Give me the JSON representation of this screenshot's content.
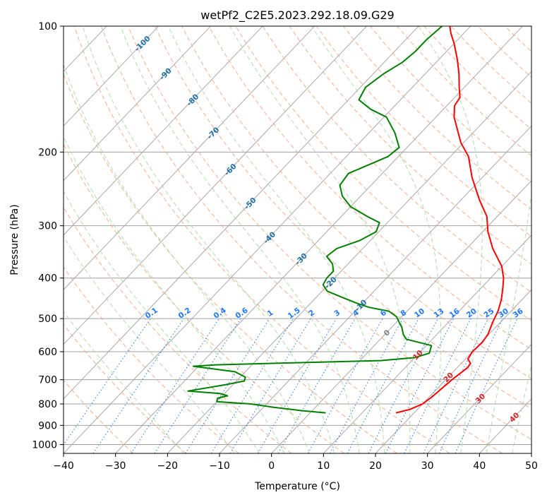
{
  "chart_data": {
    "type": "line",
    "title": "wetPf2_C2E5.2023.292.18.09.G29",
    "xlabel": "Temperature (°C)",
    "ylabel": "Pressure (hPa)",
    "xlim": [
      -40,
      50
    ],
    "ylim": [
      1050,
      100
    ],
    "y_scale": "log",
    "skew": true,
    "x_ticks": [
      -40,
      -30,
      -20,
      -10,
      0,
      10,
      20,
      30,
      40,
      50
    ],
    "y_ticks": [
      100,
      200,
      300,
      400,
      500,
      600,
      700,
      800,
      900,
      1000
    ],
    "grid": true,
    "colors": {
      "temperature": "#ff0000",
      "dewpoint": "#008000",
      "dry_adiabats": "#f4a582",
      "moist_adiabats": "#a6d9a0",
      "mixing_ratio": "#1f77ff",
      "isotherms": "#a0a0a0",
      "theta_labels": "#1f6fa8",
      "positive_iso_labels": "#d62728"
    },
    "series": [
      {
        "role": "temperature",
        "values": [
          {
            "x": 16.5,
            "y": 840
          },
          {
            "x": 18.5,
            "y": 825
          },
          {
            "x": 20.0,
            "y": 800
          },
          {
            "x": 20.5,
            "y": 770
          },
          {
            "x": 20.8,
            "y": 740
          },
          {
            "x": 21.2,
            "y": 700
          },
          {
            "x": 22.0,
            "y": 655
          },
          {
            "x": 21.8,
            "y": 640
          },
          {
            "x": 20.5,
            "y": 625
          },
          {
            "x": 20.0,
            "y": 600
          },
          {
            "x": 20.2,
            "y": 570
          },
          {
            "x": 19.8,
            "y": 545
          },
          {
            "x": 18.5,
            "y": 510
          },
          {
            "x": 17.5,
            "y": 480
          },
          {
            "x": 16.0,
            "y": 450
          },
          {
            "x": 14.0,
            "y": 420
          },
          {
            "x": 12.5,
            "y": 400
          },
          {
            "x": 10.0,
            "y": 375
          },
          {
            "x": 5.0,
            "y": 340
          },
          {
            "x": 1.0,
            "y": 310
          },
          {
            "x": -2.0,
            "y": 285
          },
          {
            "x": -6.5,
            "y": 260
          },
          {
            "x": -12.0,
            "y": 230
          },
          {
            "x": -16.5,
            "y": 205
          },
          {
            "x": -20.5,
            "y": 190
          },
          {
            "x": -24.0,
            "y": 175
          },
          {
            "x": -26.5,
            "y": 165
          },
          {
            "x": -28.5,
            "y": 155
          },
          {
            "x": -29.0,
            "y": 148
          },
          {
            "x": -31.0,
            "y": 140
          },
          {
            "x": -33.5,
            "y": 130
          },
          {
            "x": -36.5,
            "y": 120
          },
          {
            "x": -40.0,
            "y": 110
          },
          {
            "x": -42.5,
            "y": 104
          },
          {
            "x": -44.0,
            "y": 100
          }
        ]
      },
      {
        "role": "dewpoint",
        "values": [
          {
            "x": 3.0,
            "y": 840
          },
          {
            "x": -2.0,
            "y": 830
          },
          {
            "x": -8.0,
            "y": 815
          },
          {
            "x": -13.0,
            "y": 800
          },
          {
            "x": -20.0,
            "y": 790
          },
          {
            "x": -20.5,
            "y": 775
          },
          {
            "x": -19.0,
            "y": 765
          },
          {
            "x": -21.0,
            "y": 755
          },
          {
            "x": -27.5,
            "y": 745
          },
          {
            "x": -21.5,
            "y": 720
          },
          {
            "x": -18.5,
            "y": 705
          },
          {
            "x": -19.0,
            "y": 690
          },
          {
            "x": -22.0,
            "y": 670
          },
          {
            "x": -31.0,
            "y": 650
          },
          {
            "x": -27.0,
            "y": 645
          },
          {
            "x": 4.0,
            "y": 630
          },
          {
            "x": 10.0,
            "y": 620
          },
          {
            "x": 12.0,
            "y": 605
          },
          {
            "x": 11.0,
            "y": 580
          },
          {
            "x": 8.0,
            "y": 570
          },
          {
            "x": 5.0,
            "y": 560
          },
          {
            "x": 3.5,
            "y": 545
          },
          {
            "x": 2.0,
            "y": 525
          },
          {
            "x": 0.5,
            "y": 510
          },
          {
            "x": -1.0,
            "y": 495
          },
          {
            "x": -3.5,
            "y": 480
          },
          {
            "x": -8.0,
            "y": 470
          },
          {
            "x": -11.0,
            "y": 460
          },
          {
            "x": -15.0,
            "y": 445
          },
          {
            "x": -19.0,
            "y": 430
          },
          {
            "x": -21.0,
            "y": 415
          },
          {
            "x": -21.5,
            "y": 400
          },
          {
            "x": -21.5,
            "y": 385
          },
          {
            "x": -23.0,
            "y": 370
          },
          {
            "x": -25.5,
            "y": 355
          },
          {
            "x": -25.0,
            "y": 340
          },
          {
            "x": -22.0,
            "y": 325
          },
          {
            "x": -20.5,
            "y": 310
          },
          {
            "x": -21.5,
            "y": 295
          },
          {
            "x": -25.0,
            "y": 285
          },
          {
            "x": -30.0,
            "y": 270
          },
          {
            "x": -33.5,
            "y": 255
          },
          {
            "x": -36.0,
            "y": 240
          },
          {
            "x": -36.5,
            "y": 225
          },
          {
            "x": -32.0,
            "y": 205
          },
          {
            "x": -31.5,
            "y": 195
          },
          {
            "x": -35.0,
            "y": 180
          },
          {
            "x": -39.5,
            "y": 165
          },
          {
            "x": -44.0,
            "y": 158
          },
          {
            "x": -48.0,
            "y": 150
          },
          {
            "x": -49.0,
            "y": 140
          },
          {
            "x": -48.0,
            "y": 130
          },
          {
            "x": -46.5,
            "y": 122
          },
          {
            "x": -46.0,
            "y": 115
          },
          {
            "x": -46.0,
            "y": 108
          },
          {
            "x": -45.5,
            "y": 100
          }
        ]
      }
    ],
    "theta_labels": [
      "-100",
      "-90",
      "-80",
      "-70",
      "-60",
      "-50",
      "-40",
      "-30",
      "-20",
      "-10",
      "0",
      "10",
      "20",
      "30",
      "40"
    ],
    "theta_label_temps": [
      -100,
      -90,
      -80,
      -70,
      -60,
      -50,
      -40,
      -30,
      -20,
      -10,
      0,
      10,
      20,
      30,
      40
    ],
    "mixing_ratio_labels": [
      "0.1",
      "0.2",
      "0.4",
      "0.6",
      "1",
      "1.5",
      "2",
      "3",
      "4",
      "6",
      "8",
      "10",
      "13",
      "16",
      "20",
      "25",
      "30",
      "36"
    ],
    "mixing_ratio_values": [
      0.1,
      0.2,
      0.4,
      0.6,
      1,
      1.5,
      2,
      3,
      4,
      6,
      8,
      10,
      13,
      16,
      20,
      25,
      30,
      36
    ]
  }
}
